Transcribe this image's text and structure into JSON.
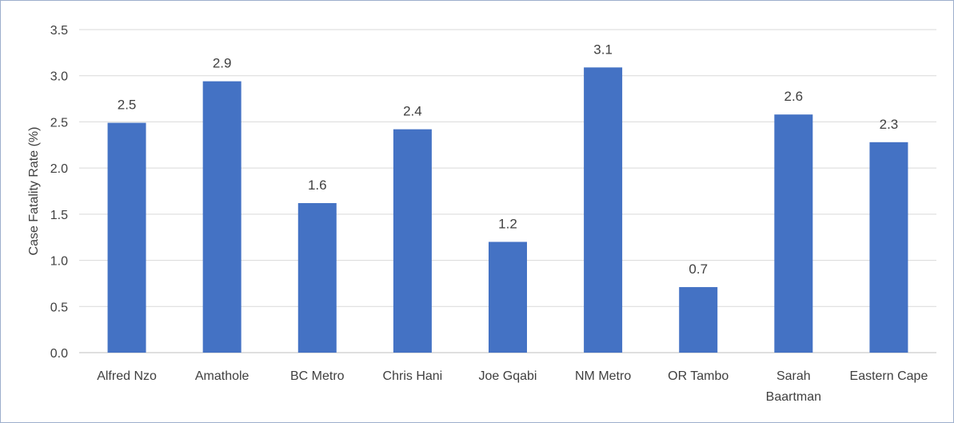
{
  "chart_data": {
    "type": "bar",
    "title": "",
    "xlabel": "",
    "ylabel": "Case Fatality Rate (%)",
    "ylim": [
      0,
      3.5
    ],
    "yticks": [
      "0.0",
      "0.5",
      "1.0",
      "1.5",
      "2.0",
      "2.5",
      "3.0",
      "3.5"
    ],
    "grid": true,
    "legend": "none",
    "bar_color": "#4472c4",
    "categories": [
      [
        "Alfred Nzo"
      ],
      [
        "Amathole"
      ],
      [
        "BC Metro"
      ],
      [
        "Chris Hani"
      ],
      [
        "Joe Gqabi"
      ],
      [
        "NM Metro"
      ],
      [
        "OR Tambo"
      ],
      [
        "Sarah",
        "Baartman"
      ],
      [
        "Eastern Cape"
      ]
    ],
    "values": [
      2.49,
      2.94,
      1.62,
      2.42,
      1.2,
      3.09,
      0.71,
      2.58,
      2.28
    ],
    "data_labels": [
      "2.5",
      "2.9",
      "1.6",
      "2.4",
      "1.2",
      "3.1",
      "0.7",
      "2.6",
      "2.3"
    ]
  }
}
